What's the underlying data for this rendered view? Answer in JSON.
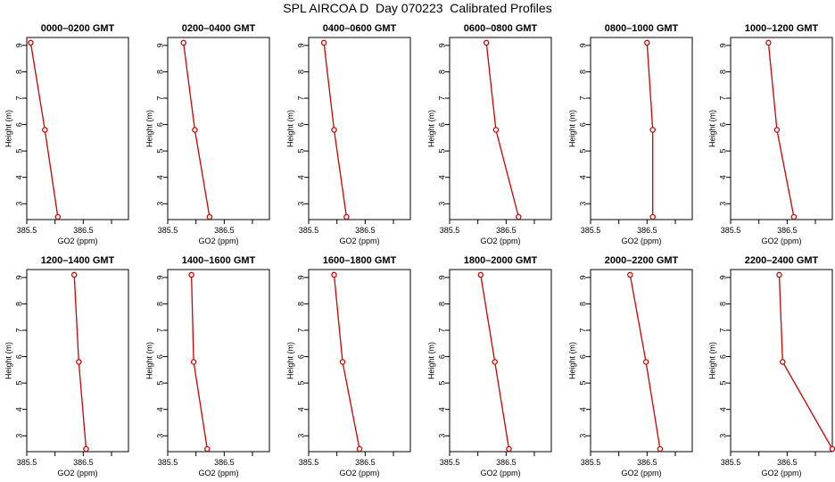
{
  "page_title": "SPL AIRCOA D  Day 070223  Calibrated Profiles",
  "colors": {
    "profile_line": "#cc0000",
    "frame": "#000000",
    "background": "#ffffff"
  },
  "chart_data": [
    {
      "type": "line",
      "title": "0000–0200 GMT",
      "xlabel": "GO2 (ppm)",
      "ylabel": "Height (m)",
      "xlim": [
        385.5,
        387.3
      ],
      "ylim": [
        2.4,
        9.3
      ],
      "xticks": [
        385.5,
        386,
        386.5,
        387
      ],
      "xtick_labels": [
        "385.5",
        "",
        "386.5",
        ""
      ],
      "yticks": [
        3,
        4,
        5,
        6,
        7,
        8,
        9
      ],
      "ytick_labels": [
        "3",
        "4",
        "5",
        "6",
        "7",
        "8",
        "9"
      ],
      "series": [
        {
          "x": [
            385.57,
            385.82,
            386.05
          ],
          "y": [
            9.1,
            5.8,
            2.5
          ]
        }
      ]
    },
    {
      "type": "line",
      "title": "0200–0400 GMT",
      "xlabel": "GO2 (ppm)",
      "ylabel": "Height (m)",
      "xlim": [
        385.5,
        387.3
      ],
      "ylim": [
        2.4,
        9.3
      ],
      "xticks": [
        385.5,
        386,
        386.5,
        387
      ],
      "xtick_labels": [
        "385.5",
        "",
        "386.5",
        ""
      ],
      "yticks": [
        3,
        4,
        5,
        6,
        7,
        8,
        9
      ],
      "ytick_labels": [
        "3",
        "4",
        "5",
        "6",
        "7",
        "8",
        "9"
      ],
      "series": [
        {
          "x": [
            385.78,
            385.98,
            386.24
          ],
          "y": [
            9.1,
            5.8,
            2.5
          ]
        }
      ]
    },
    {
      "type": "line",
      "title": "0400–0600 GMT",
      "xlabel": "GO2 (ppm)",
      "ylabel": "Height (m)",
      "xlim": [
        385.5,
        387.3
      ],
      "ylim": [
        2.4,
        9.3
      ],
      "xticks": [
        385.5,
        386,
        386.5,
        387
      ],
      "xtick_labels": [
        "385.5",
        "",
        "386.5",
        ""
      ],
      "yticks": [
        3,
        4,
        5,
        6,
        7,
        8,
        9
      ],
      "ytick_labels": [
        "3",
        "4",
        "5",
        "6",
        "7",
        "8",
        "9"
      ],
      "series": [
        {
          "x": [
            385.77,
            385.95,
            386.17
          ],
          "y": [
            9.1,
            5.8,
            2.5
          ]
        }
      ]
    },
    {
      "type": "line",
      "title": "0600–0800 GMT",
      "xlabel": "GO2 (ppm)",
      "ylabel": "Height (m)",
      "xlim": [
        385.5,
        387.3
      ],
      "ylim": [
        2.4,
        9.3
      ],
      "xticks": [
        385.5,
        386,
        386.5,
        387
      ],
      "xtick_labels": [
        "385.5",
        "",
        "386.5",
        ""
      ],
      "yticks": [
        3,
        4,
        5,
        6,
        7,
        8,
        9
      ],
      "ytick_labels": [
        "3",
        "4",
        "5",
        "6",
        "7",
        "8",
        "9"
      ],
      "series": [
        {
          "x": [
            386.15,
            386.32,
            386.72
          ],
          "y": [
            9.1,
            5.8,
            2.5
          ]
        }
      ]
    },
    {
      "type": "line",
      "title": "0800–1000 GMT",
      "xlabel": "GO2 (ppm)",
      "ylabel": "Height (m)",
      "xlim": [
        385.5,
        387.3
      ],
      "ylim": [
        2.4,
        9.3
      ],
      "xticks": [
        385.5,
        386,
        386.5,
        387
      ],
      "xtick_labels": [
        "385.5",
        "",
        "386.5",
        ""
      ],
      "yticks": [
        3,
        4,
        5,
        6,
        7,
        8,
        9
      ],
      "ytick_labels": [
        "3",
        "4",
        "5",
        "6",
        "7",
        "8",
        "9"
      ],
      "series": [
        {
          "x": [
            386.5,
            386.6,
            386.6
          ],
          "y": [
            9.1,
            5.8,
            2.5
          ]
        }
      ]
    },
    {
      "type": "line",
      "title": "1000–1200 GMT",
      "xlabel": "GO2 (ppm)",
      "ylabel": "Height (m)",
      "xlim": [
        385.5,
        387.3
      ],
      "ylim": [
        2.4,
        9.3
      ],
      "xticks": [
        385.5,
        386,
        386.5,
        387
      ],
      "xtick_labels": [
        "385.5",
        "",
        "386.5",
        ""
      ],
      "yticks": [
        3,
        4,
        5,
        6,
        7,
        8,
        9
      ],
      "ytick_labels": [
        "3",
        "4",
        "5",
        "6",
        "7",
        "8",
        "9"
      ],
      "series": [
        {
          "x": [
            386.17,
            386.32,
            386.62
          ],
          "y": [
            9.1,
            5.8,
            2.5
          ]
        }
      ]
    },
    {
      "type": "line",
      "title": "1200–1400 GMT",
      "xlabel": "GO2 (ppm)",
      "ylabel": "Height (m)",
      "xlim": [
        385.5,
        387.3
      ],
      "ylim": [
        2.4,
        9.3
      ],
      "xticks": [
        385.5,
        386,
        386.5,
        387
      ],
      "xtick_labels": [
        "385.5",
        "",
        "386.5",
        ""
      ],
      "yticks": [
        3,
        4,
        5,
        6,
        7,
        8,
        9
      ],
      "ytick_labels": [
        "3",
        "4",
        "5",
        "6",
        "7",
        "8",
        "9"
      ],
      "series": [
        {
          "x": [
            386.34,
            386.42,
            386.55
          ],
          "y": [
            9.1,
            5.8,
            2.5
          ]
        }
      ]
    },
    {
      "type": "line",
      "title": "1400–1600 GMT",
      "xlabel": "GO2 (ppm)",
      "ylabel": "Height (m)",
      "xlim": [
        385.5,
        387.3
      ],
      "ylim": [
        2.4,
        9.3
      ],
      "xticks": [
        385.5,
        386,
        386.5,
        387
      ],
      "xtick_labels": [
        "385.5",
        "",
        "386.5",
        ""
      ],
      "yticks": [
        3,
        4,
        5,
        6,
        7,
        8,
        9
      ],
      "ytick_labels": [
        "3",
        "4",
        "5",
        "6",
        "7",
        "8",
        "9"
      ],
      "series": [
        {
          "x": [
            385.92,
            385.96,
            386.2
          ],
          "y": [
            9.1,
            5.8,
            2.5
          ]
        }
      ]
    },
    {
      "type": "line",
      "title": "1600–1800 GMT",
      "xlabel": "GO2 (ppm)",
      "ylabel": "Height (m)",
      "xlim": [
        385.5,
        387.3
      ],
      "ylim": [
        2.4,
        9.3
      ],
      "xticks": [
        385.5,
        386,
        386.5,
        387
      ],
      "xtick_labels": [
        "385.5",
        "",
        "386.5",
        ""
      ],
      "yticks": [
        3,
        4,
        5,
        6,
        7,
        8,
        9
      ],
      "ytick_labels": [
        "3",
        "4",
        "5",
        "6",
        "7",
        "8",
        "9"
      ],
      "series": [
        {
          "x": [
            385.95,
            386.1,
            386.4
          ],
          "y": [
            9.1,
            5.8,
            2.5
          ]
        }
      ]
    },
    {
      "type": "line",
      "title": "1800–2000 GMT",
      "xlabel": "GO2 (ppm)",
      "ylabel": "Height (m)",
      "xlim": [
        385.5,
        387.3
      ],
      "ylim": [
        2.4,
        9.3
      ],
      "xticks": [
        385.5,
        386,
        386.5,
        387
      ],
      "xtick_labels": [
        "385.5",
        "",
        "386.5",
        ""
      ],
      "yticks": [
        3,
        4,
        5,
        6,
        7,
        8,
        9
      ],
      "ytick_labels": [
        "3",
        "4",
        "5",
        "6",
        "7",
        "8",
        "9"
      ],
      "series": [
        {
          "x": [
            386.05,
            386.3,
            386.55
          ],
          "y": [
            9.1,
            5.8,
            2.5
          ]
        }
      ]
    },
    {
      "type": "line",
      "title": "2000–2200 GMT",
      "xlabel": "GO2 (ppm)",
      "ylabel": "Height (m)",
      "xlim": [
        385.5,
        387.3
      ],
      "ylim": [
        2.4,
        9.3
      ],
      "xticks": [
        385.5,
        386,
        386.5,
        387
      ],
      "xtick_labels": [
        "385.5",
        "",
        "386.5",
        ""
      ],
      "yticks": [
        3,
        4,
        5,
        6,
        7,
        8,
        9
      ],
      "ytick_labels": [
        "3",
        "4",
        "5",
        "6",
        "7",
        "8",
        "9"
      ],
      "series": [
        {
          "x": [
            386.2,
            386.48,
            386.73
          ],
          "y": [
            9.1,
            5.8,
            2.5
          ]
        }
      ]
    },
    {
      "type": "line",
      "title": "2200–2400 GMT",
      "xlabel": "GO2 (ppm)",
      "ylabel": "Height (m)",
      "xlim": [
        385.5,
        387.3
      ],
      "ylim": [
        2.4,
        9.3
      ],
      "xticks": [
        385.5,
        386,
        386.5,
        387
      ],
      "xtick_labels": [
        "385.5",
        "",
        "386.5",
        ""
      ],
      "yticks": [
        3,
        4,
        5,
        6,
        7,
        8,
        9
      ],
      "ytick_labels": [
        "3",
        "4",
        "5",
        "6",
        "7",
        "8",
        "9"
      ],
      "series": [
        {
          "x": [
            386.36,
            386.42,
            387.3
          ],
          "y": [
            9.1,
            5.8,
            2.5
          ]
        }
      ]
    }
  ]
}
